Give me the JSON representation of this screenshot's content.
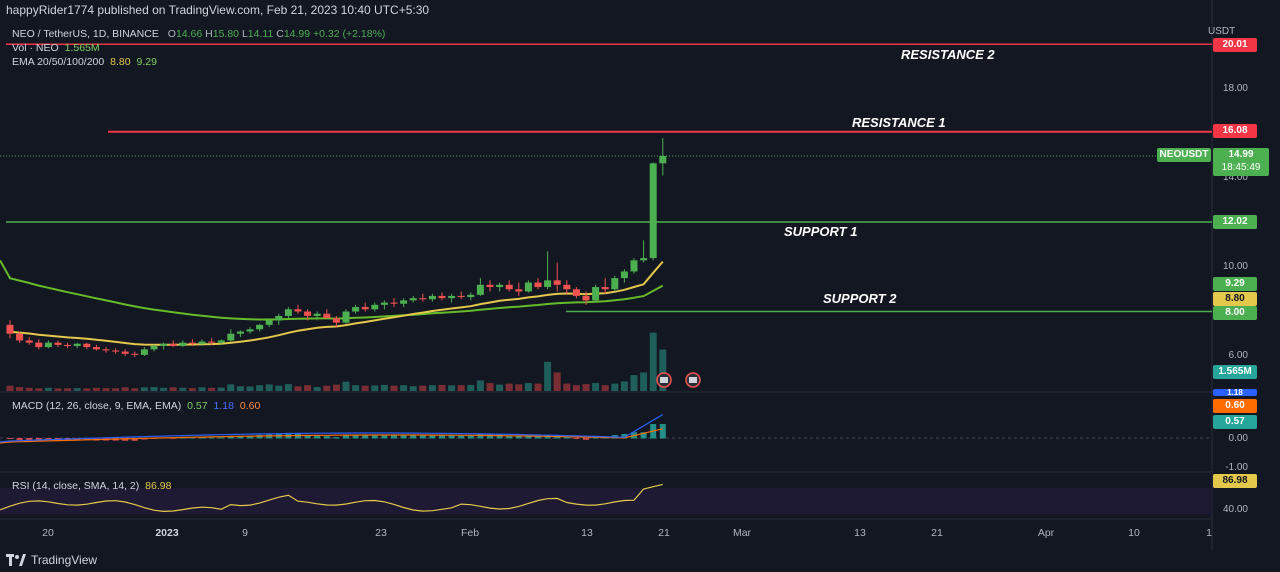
{
  "header": {
    "publisher": "happyRider1774 published on TradingView.com, Feb 21, 2023 10:40 UTC+5:30"
  },
  "legend": {
    "symbol": "NEO / TetherUS, 1D, BINANCE",
    "o_label": "O",
    "o": "14.66",
    "h_label": "H",
    "h": "15.80",
    "l_label": "L",
    "l": "14.11",
    "c_label": "C",
    "c": "14.99",
    "change": "+0.32 (+2.18%)",
    "vol_label": "Vol · NEO",
    "vol": "1.565M",
    "ema_label": "EMA 20/50/100/200",
    "ema1": "8.80",
    "ema2": "9.29",
    "macd_label": "MACD (12, 26, close, 9, EMA, EMA)",
    "macd1": "0.57",
    "macd2": "1.18",
    "macd3": "0.60",
    "rsi_label": "RSI (14, close, SMA, 14, 2)",
    "rsi": "86.98"
  },
  "annotations": {
    "res2": "RESISTANCE 2",
    "res1": "RESISTANCE 1",
    "sup1": "SUPPORT 1",
    "sup2": "SUPPORT 2"
  },
  "price_axis": {
    "unit": "USDT",
    "ticks": [
      "20.01",
      "18.00",
      "14.00",
      "10.00",
      "6.00"
    ],
    "tag_res2": "20.01",
    "tag_res1": "16.08",
    "tag_symbol": "NEOUSDT",
    "tag_last": "14.99",
    "tag_countdown": "18:45:49",
    "tag_sup1": "12.02",
    "tag_ema1": "9.29",
    "tag_ema2": "8.80",
    "tag_sup2": "8.00",
    "tag_vol": "1.565M"
  },
  "macd_axis": {
    "ticks": [
      "1.18",
      "0.60",
      "0.57",
      "0.00",
      "-1.00"
    ]
  },
  "rsi_axis": {
    "ticks": [
      "86.98",
      "40.00"
    ]
  },
  "time_axis": [
    "20",
    "2023",
    "9",
    "23",
    "Feb",
    "13",
    "21",
    "Mar",
    "13",
    "21",
    "Apr",
    "10",
    "1"
  ],
  "branding": {
    "logo": "TradingView"
  },
  "colors": {
    "up": "#4caf50",
    "down": "#ef5350",
    "resistance": "#f23645",
    "support": "#4caf50",
    "ema_fast": "#e4c84b",
    "ema_slow": "#66bb2a",
    "macd": "#2962ff",
    "signal": "#ff6d00",
    "rsi": "#e4c84b"
  },
  "chart_data": {
    "type": "candlestick",
    "symbol": "NEOUSDT",
    "timeframe": "1D",
    "ylim": [
      5.2,
      20.5
    ],
    "levels": {
      "resistance_2": 20.01,
      "resistance_1": 16.08,
      "support_1": 12.02,
      "support_2": 8.0
    },
    "ema_fast_last": 8.8,
    "ema_slow_last": 9.29,
    "candles": [
      [
        7.4,
        7.6,
        6.8,
        7.0
      ],
      [
        7.0,
        7.1,
        6.6,
        6.7
      ],
      [
        6.7,
        6.85,
        6.5,
        6.6
      ],
      [
        6.6,
        6.75,
        6.3,
        6.4
      ],
      [
        6.4,
        6.7,
        6.35,
        6.6
      ],
      [
        6.6,
        6.7,
        6.4,
        6.5
      ],
      [
        6.5,
        6.6,
        6.35,
        6.45
      ],
      [
        6.45,
        6.6,
        6.35,
        6.55
      ],
      [
        6.55,
        6.6,
        6.3,
        6.4
      ],
      [
        6.4,
        6.5,
        6.25,
        6.3
      ],
      [
        6.3,
        6.4,
        6.15,
        6.25
      ],
      [
        6.25,
        6.35,
        6.1,
        6.2
      ],
      [
        6.2,
        6.3,
        6.0,
        6.1
      ],
      [
        6.1,
        6.2,
        5.95,
        6.05
      ],
      [
        6.05,
        6.4,
        6.0,
        6.3
      ],
      [
        6.3,
        6.5,
        6.2,
        6.45
      ],
      [
        6.45,
        6.6,
        6.3,
        6.55
      ],
      [
        6.55,
        6.7,
        6.4,
        6.45
      ],
      [
        6.45,
        6.7,
        6.4,
        6.6
      ],
      [
        6.6,
        6.75,
        6.45,
        6.55
      ],
      [
        6.55,
        6.75,
        6.45,
        6.65
      ],
      [
        6.65,
        6.8,
        6.5,
        6.6
      ],
      [
        6.6,
        6.75,
        6.5,
        6.7
      ],
      [
        6.7,
        7.2,
        6.65,
        7.0
      ],
      [
        7.0,
        7.15,
        6.85,
        7.1
      ],
      [
        7.1,
        7.3,
        7.0,
        7.2
      ],
      [
        7.2,
        7.45,
        7.1,
        7.4
      ],
      [
        7.4,
        7.7,
        7.3,
        7.6
      ],
      [
        7.6,
        7.9,
        7.4,
        7.8
      ],
      [
        7.8,
        8.2,
        7.7,
        8.1
      ],
      [
        8.1,
        8.3,
        7.9,
        8.0
      ],
      [
        8.0,
        8.1,
        7.6,
        7.8
      ],
      [
        7.8,
        8.0,
        7.6,
        7.9
      ],
      [
        7.9,
        8.1,
        7.7,
        7.7
      ],
      [
        7.7,
        7.8,
        7.3,
        7.5
      ],
      [
        7.5,
        8.1,
        7.45,
        8.0
      ],
      [
        8.0,
        8.3,
        7.9,
        8.2
      ],
      [
        8.2,
        8.4,
        8.0,
        8.1
      ],
      [
        8.1,
        8.4,
        8.0,
        8.3
      ],
      [
        8.3,
        8.5,
        8.1,
        8.4
      ],
      [
        8.4,
        8.6,
        8.2,
        8.35
      ],
      [
        8.35,
        8.6,
        8.2,
        8.5
      ],
      [
        8.5,
        8.7,
        8.4,
        8.6
      ],
      [
        8.6,
        8.8,
        8.45,
        8.55
      ],
      [
        8.55,
        8.8,
        8.45,
        8.7
      ],
      [
        8.7,
        8.85,
        8.5,
        8.6
      ],
      [
        8.6,
        8.8,
        8.4,
        8.7
      ],
      [
        8.7,
        8.9,
        8.55,
        8.65
      ],
      [
        8.65,
        8.85,
        8.5,
        8.75
      ],
      [
        8.75,
        9.5,
        8.7,
        9.2
      ],
      [
        9.2,
        9.4,
        8.9,
        9.1
      ],
      [
        9.1,
        9.3,
        8.9,
        9.2
      ],
      [
        9.2,
        9.4,
        8.9,
        9.0
      ],
      [
        9.0,
        9.3,
        8.7,
        8.9
      ],
      [
        8.9,
        9.4,
        8.85,
        9.3
      ],
      [
        9.3,
        9.5,
        9.0,
        9.1
      ],
      [
        9.1,
        10.7,
        9.0,
        9.4
      ],
      [
        9.4,
        10.2,
        8.9,
        9.2
      ],
      [
        9.2,
        9.4,
        8.8,
        9.0
      ],
      [
        9.0,
        9.1,
        8.6,
        8.7
      ],
      [
        8.7,
        8.9,
        8.3,
        8.5
      ],
      [
        8.5,
        9.2,
        8.4,
        9.1
      ],
      [
        9.1,
        9.5,
        8.8,
        9.0
      ],
      [
        9.0,
        9.6,
        8.9,
        9.5
      ],
      [
        9.5,
        9.9,
        9.3,
        9.8
      ],
      [
        9.8,
        10.4,
        9.7,
        10.3
      ],
      [
        10.3,
        11.2,
        10.2,
        10.4
      ],
      [
        10.4,
        14.7,
        10.3,
        14.66
      ],
      [
        14.66,
        15.8,
        14.11,
        14.99
      ]
    ],
    "volume": [
      0.2,
      0.15,
      0.12,
      0.1,
      0.12,
      0.1,
      0.1,
      0.11,
      0.1,
      0.12,
      0.11,
      0.1,
      0.14,
      0.1,
      0.14,
      0.15,
      0.12,
      0.14,
      0.12,
      0.11,
      0.14,
      0.12,
      0.13,
      0.25,
      0.18,
      0.17,
      0.22,
      0.25,
      0.2,
      0.26,
      0.18,
      0.22,
      0.15,
      0.2,
      0.24,
      0.35,
      0.22,
      0.2,
      0.21,
      0.23,
      0.2,
      0.22,
      0.18,
      0.2,
      0.22,
      0.23,
      0.21,
      0.22,
      0.23,
      0.4,
      0.3,
      0.24,
      0.28,
      0.25,
      0.3,
      0.28,
      1.1,
      0.7,
      0.28,
      0.22,
      0.26,
      0.3,
      0.22,
      0.28,
      0.36,
      0.6,
      0.7,
      2.2,
      1.565
    ],
    "macd": {
      "last": 0.57,
      "signal_last": 0.6,
      "macd_last": 1.18
    },
    "rsi": {
      "last": 86.98,
      "overbought": 70,
      "oversold": 30
    }
  }
}
